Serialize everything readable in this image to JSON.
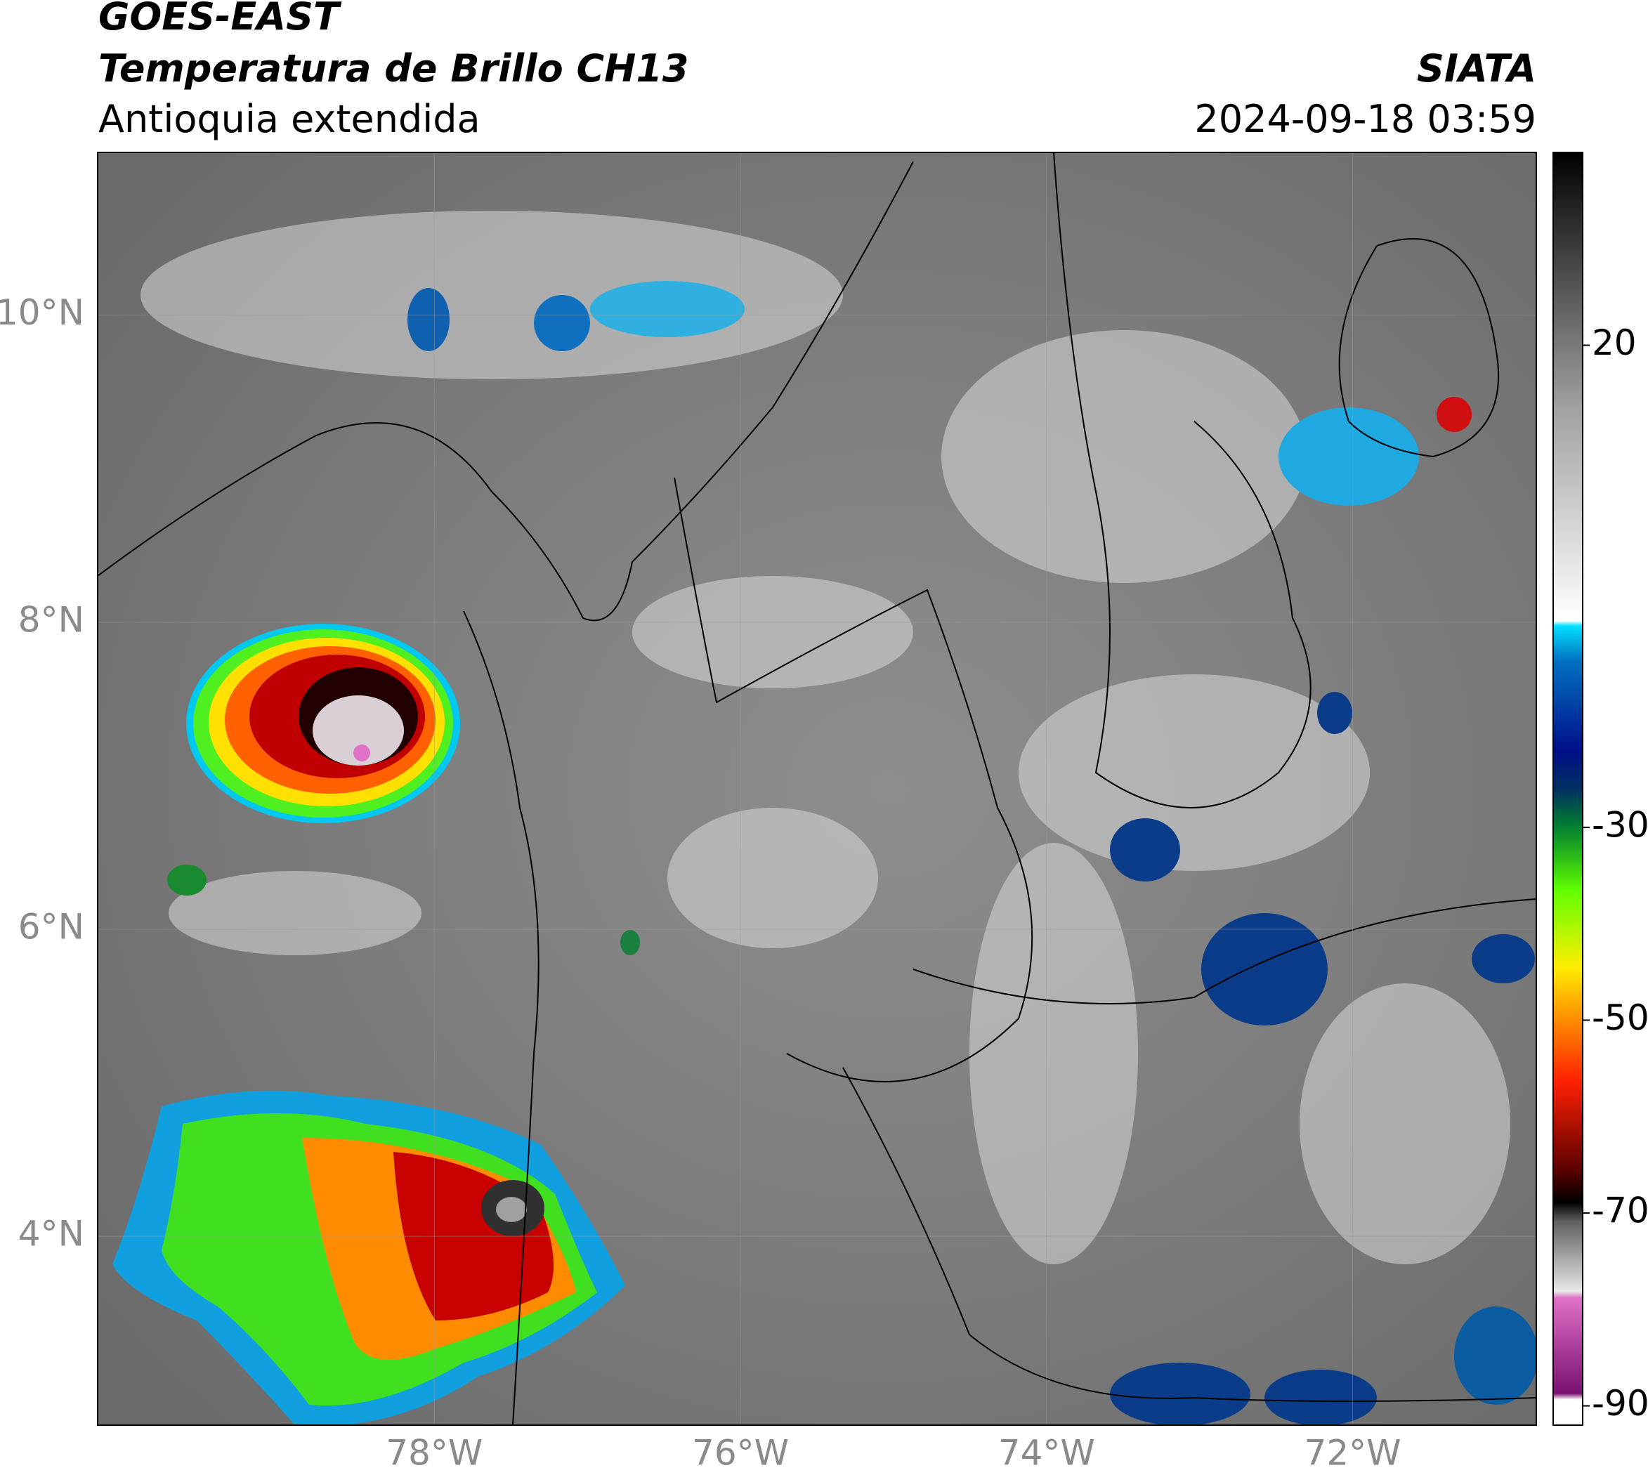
{
  "header": {
    "satellite": "GOES-EAST",
    "product": "Temperatura de Brillo CH13",
    "region": "Antioquia extendida",
    "source": "SIATA",
    "datetime": "2024-09-18 03:59"
  },
  "map": {
    "xlim": [
      -80.2,
      -70.8
    ],
    "ylim": [
      2.77,
      11.06
    ],
    "xticks": [
      {
        "value": -78,
        "label": "78°W"
      },
      {
        "value": -76,
        "label": "76°W"
      },
      {
        "value": -74,
        "label": "74°W"
      },
      {
        "value": -72,
        "label": "72°W"
      }
    ],
    "yticks": [
      {
        "value": 10,
        "label": "10°N"
      },
      {
        "value": 8,
        "label": "8°N"
      },
      {
        "value": 6,
        "label": "6°N"
      },
      {
        "value": 4,
        "label": "4°N"
      }
    ]
  },
  "colorbar": {
    "range": [
      -92,
      40
    ],
    "ticks": [
      20,
      -30,
      -50,
      -70,
      -90
    ]
  }
}
